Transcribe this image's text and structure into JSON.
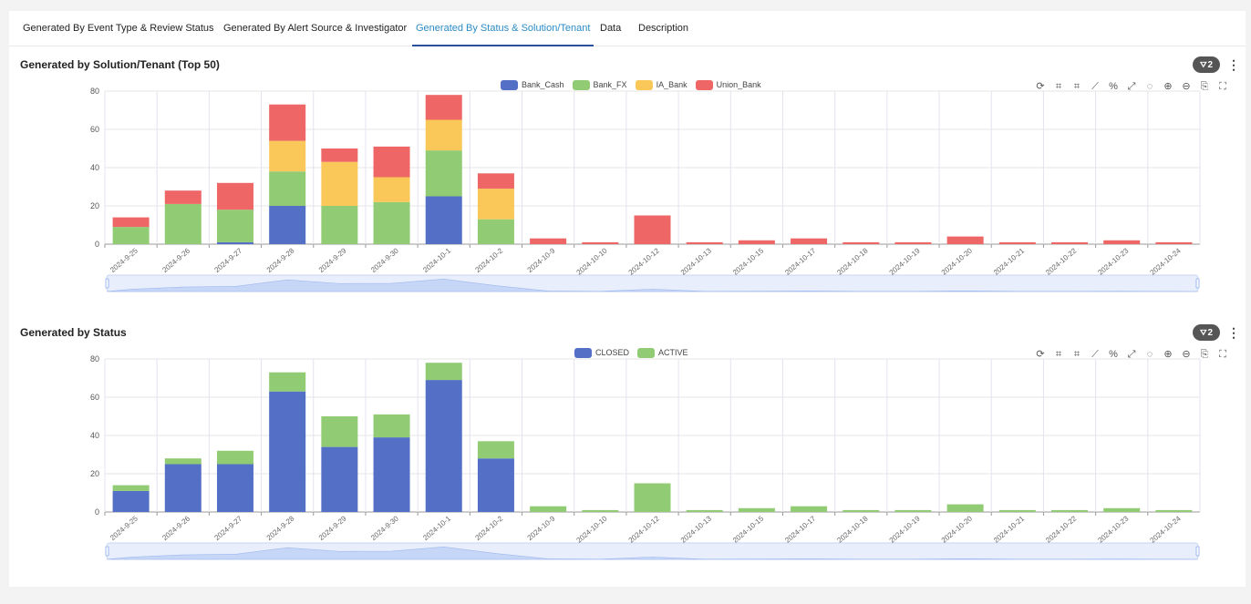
{
  "tabs": [
    {
      "label": "Generated By Event Type & Review Status",
      "active": false
    },
    {
      "label": "Generated By Alert Source & Investigator",
      "active": false
    },
    {
      "label": "Generated By Status & Solution/Tenant",
      "active": true
    },
    {
      "label": "Data",
      "active": false
    },
    {
      "label": "Description",
      "active": false
    }
  ],
  "filter_count": "2",
  "toolbox_icons": [
    "refresh-icon",
    "crop-icon",
    "crop-reset-icon",
    "line-chart-icon",
    "percent-icon",
    "expand-icon",
    "lasso-icon",
    "zoom-in-icon",
    "zoom-out-icon",
    "save-image-icon",
    "fullscreen-icon"
  ],
  "chart_data": [
    {
      "title": "Generated by Solution/Tenant (Top 50)",
      "type": "bar",
      "stacked": true,
      "categories": [
        "2024-9-25",
        "2024-9-26",
        "2024-9-27",
        "2024-9-28",
        "2024-9-29",
        "2024-9-30",
        "2024-10-1",
        "2024-10-2",
        "2024-10-9",
        "2024-10-10",
        "2024-10-12",
        "2024-10-13",
        "2024-10-15",
        "2024-10-17",
        "2024-10-18",
        "2024-10-19",
        "2024-10-20",
        "2024-10-21",
        "2024-10-22",
        "2024-10-23",
        "2024-10-24"
      ],
      "series": [
        {
          "name": "Bank_Cash",
          "color": "#5470c6",
          "values": [
            0,
            0,
            1,
            20,
            0,
            0,
            25,
            0,
            0,
            0,
            0,
            0,
            0,
            0,
            0,
            0,
            0,
            0,
            0,
            0,
            0
          ]
        },
        {
          "name": "Bank_FX",
          "color": "#91cc75",
          "values": [
            9,
            21,
            17,
            18,
            20,
            22,
            24,
            13,
            0,
            0,
            0,
            0,
            0,
            0,
            0,
            0,
            0,
            0,
            0,
            0,
            0
          ]
        },
        {
          "name": "IA_Bank",
          "color": "#fac858",
          "values": [
            0,
            0,
            0,
            16,
            23,
            13,
            16,
            16,
            0,
            0,
            0,
            0,
            0,
            0,
            0,
            0,
            0,
            0,
            0,
            0,
            0
          ]
        },
        {
          "name": "Union_Bank",
          "color": "#ee6666",
          "values": [
            5,
            7,
            14,
            19,
            7,
            16,
            13,
            8,
            3,
            1,
            15,
            1,
            2,
            3,
            1,
            1,
            4,
            1,
            1,
            2,
            1
          ]
        }
      ],
      "ylim": [
        0,
        80
      ],
      "yticks": [
        0,
        20,
        40,
        60,
        80
      ],
      "legend_position": "top-center",
      "grid": true,
      "has_datazoom_slider": true
    },
    {
      "title": "Generated by Status",
      "type": "bar",
      "stacked": true,
      "categories": [
        "2024-9-25",
        "2024-9-26",
        "2024-9-27",
        "2024-9-28",
        "2024-9-29",
        "2024-9-30",
        "2024-10-1",
        "2024-10-2",
        "2024-10-9",
        "2024-10-10",
        "2024-10-12",
        "2024-10-13",
        "2024-10-15",
        "2024-10-17",
        "2024-10-18",
        "2024-10-19",
        "2024-10-20",
        "2024-10-21",
        "2024-10-22",
        "2024-10-23",
        "2024-10-24"
      ],
      "series": [
        {
          "name": "CLOSED",
          "color": "#5470c6",
          "values": [
            11,
            25,
            25,
            63,
            34,
            39,
            69,
            28,
            0,
            0,
            0,
            0,
            0,
            0,
            0,
            0,
            0,
            0,
            0,
            0,
            0
          ]
        },
        {
          "name": "ACTIVE",
          "color": "#91cc75",
          "values": [
            3,
            3,
            7,
            10,
            16,
            12,
            9,
            9,
            3,
            1,
            15,
            1,
            2,
            3,
            1,
            1,
            4,
            1,
            1,
            2,
            1
          ]
        }
      ],
      "ylim": [
        0,
        80
      ],
      "yticks": [
        0,
        20,
        40,
        60,
        80
      ],
      "legend_position": "top-center",
      "grid": true,
      "has_datazoom_slider": true
    }
  ]
}
